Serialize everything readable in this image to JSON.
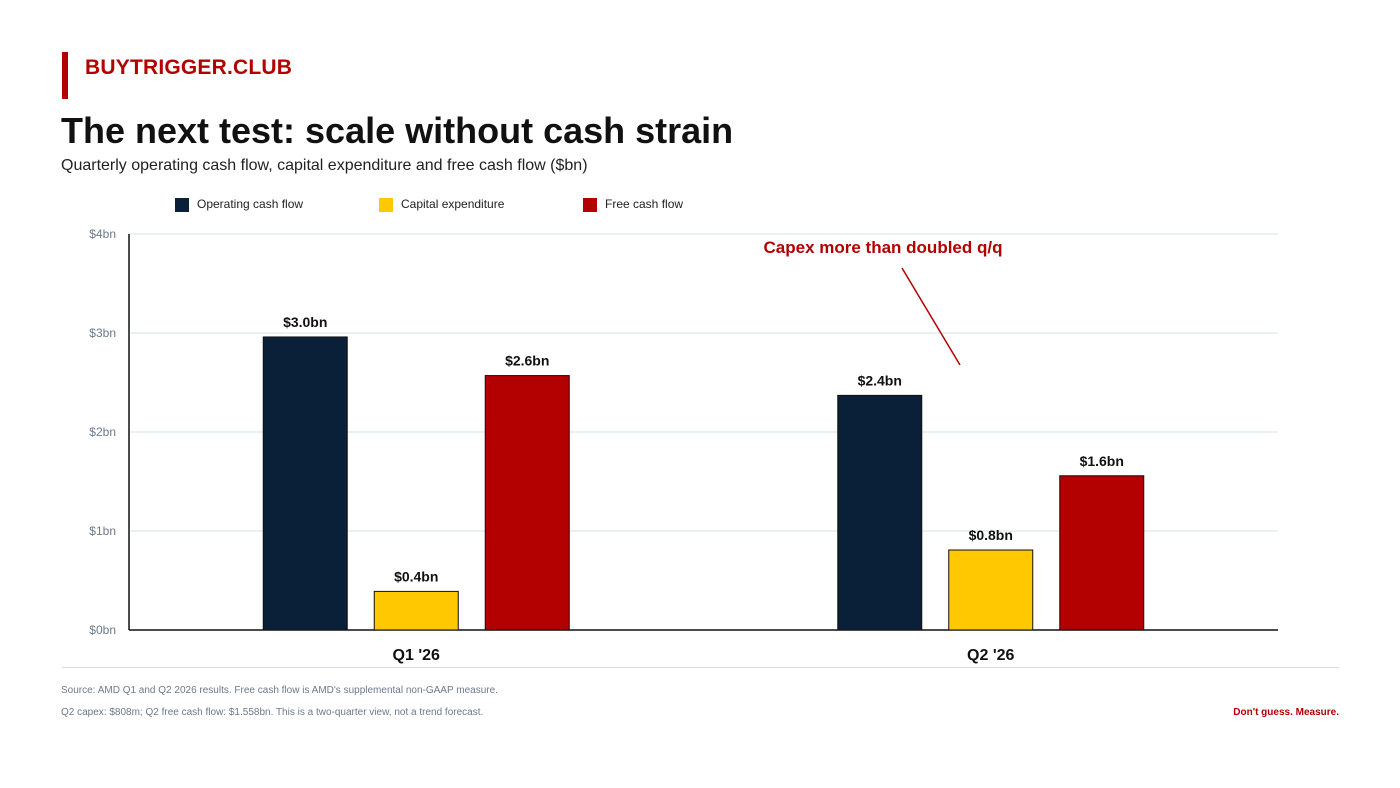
{
  "brand": {
    "name": "BUYTRIGGER.CLUB",
    "accent": "#b30000"
  },
  "header": {
    "title": "The next test: scale without cash strain",
    "subtitle": "Quarterly operating cash flow, capital expenditure and free cash flow ($bn)"
  },
  "chart_data": {
    "type": "bar",
    "categories": [
      "Q1 '26",
      "Q2 '26"
    ],
    "series": [
      {
        "name": "Operating cash flow",
        "color": "#0a2038",
        "values": [
          2.96,
          2.37
        ],
        "labels": [
          "$3.0bn",
          "$2.4bn"
        ]
      },
      {
        "name": "Capital expenditure",
        "color": "#ffc800",
        "values": [
          0.39,
          0.808
        ],
        "labels": [
          "$0.4bn",
          "$0.8bn"
        ]
      },
      {
        "name": "Free cash flow",
        "color": "#b30000",
        "values": [
          2.57,
          1.558
        ],
        "labels": [
          "$2.6bn",
          "$1.6bn"
        ]
      }
    ],
    "ylim": [
      0,
      4
    ],
    "yticks": [
      0,
      1,
      2,
      3,
      4
    ],
    "ytick_labels": [
      "$0bn",
      "$1bn",
      "$2bn",
      "$3bn",
      "$4bn"
    ],
    "grid": true,
    "legend_position": "top-left",
    "annotation": {
      "text": "Capex more than doubled q/q",
      "color": "#b30000"
    }
  },
  "footer": {
    "source": "Source: AMD Q1 and Q2 2026 results. Free cash flow is AMD's supplemental non-GAAP measure.",
    "note": "Q2 capex: $808m; Q2 free cash flow: $1.558bn. This is a two-quarter view, not a trend forecast.",
    "tagline": "Don't guess. Measure."
  }
}
